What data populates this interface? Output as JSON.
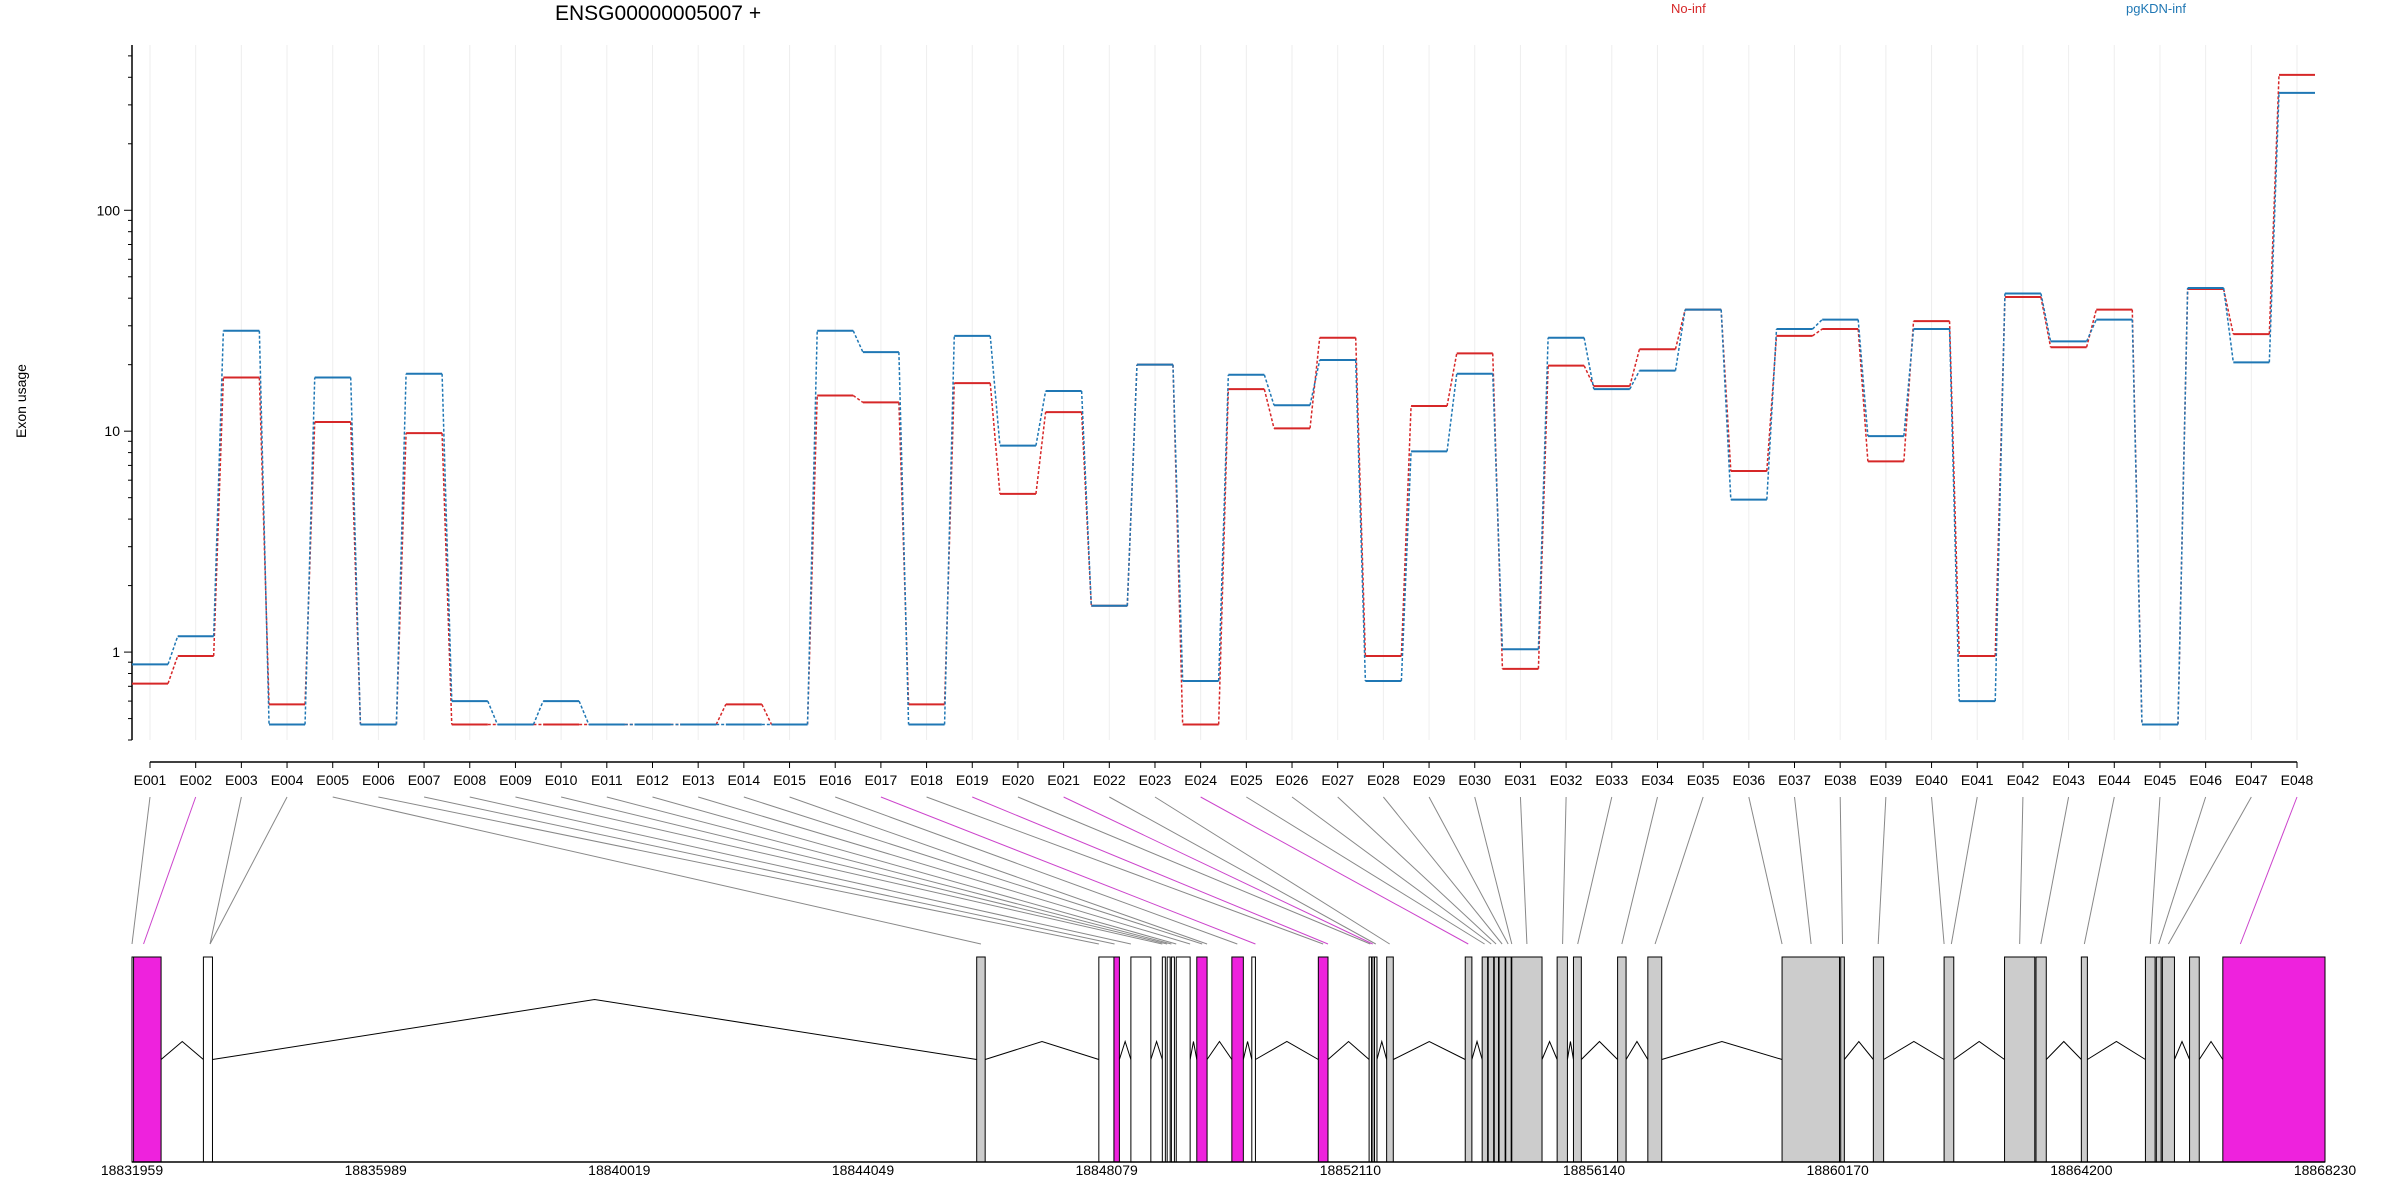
{
  "header": {
    "gene_title": "ENSG00000005007 +",
    "legend": [
      {
        "label": "No-inf",
        "color": "#d62728"
      },
      {
        "label": "pgKDN-inf",
        "color": "#1f77b4"
      }
    ]
  },
  "chart_data": {
    "type": "line",
    "title": "ENSG00000005007 +",
    "ylabel": "Exon usage",
    "yscale": "log",
    "ylim": [
      0.4,
      560
    ],
    "ytick_labels": [
      "1",
      "10",
      "100"
    ],
    "ytick_values": [
      1,
      10,
      100
    ],
    "grid": "vertical",
    "legend_placement": "top",
    "categories": [
      "E001",
      "E002",
      "E003",
      "E004",
      "E005",
      "E006",
      "E007",
      "E008",
      "E009",
      "E010",
      "E011",
      "E012",
      "E013",
      "E014",
      "E015",
      "E016",
      "E017",
      "E018",
      "E019",
      "E020",
      "E021",
      "E022",
      "E023",
      "E024",
      "E025",
      "E026",
      "E027",
      "E028",
      "E029",
      "E030",
      "E031",
      "E032",
      "E033",
      "E034",
      "E035",
      "E036",
      "E037",
      "E038",
      "E039",
      "E040",
      "E041",
      "E042",
      "E043",
      "E044",
      "E045",
      "E046",
      "E047",
      "E048"
    ],
    "series": [
      {
        "name": "No-inf",
        "color": "#d62728",
        "values": [
          0.72,
          0.96,
          17.5,
          0.58,
          11,
          0.47,
          9.8,
          0.47,
          0.47,
          0.47,
          0.47,
          0.47,
          0.47,
          0.58,
          0.47,
          14.5,
          13.5,
          0.58,
          16.5,
          5.2,
          12.2,
          1.62,
          20,
          0.47,
          15.5,
          10.3,
          26.5,
          0.96,
          13,
          22.5,
          0.84,
          19.8,
          16,
          23.5,
          35.5,
          6.6,
          27,
          29,
          7.3,
          31.5,
          0.96,
          40.5,
          24,
          35.5,
          0.47,
          44,
          27.5,
          410
        ]
      },
      {
        "name": "pgKDN-inf",
        "color": "#1f77b4",
        "values": [
          0.88,
          1.18,
          28.5,
          0.47,
          17.5,
          0.47,
          18.2,
          0.6,
          0.47,
          0.6,
          0.47,
          0.47,
          0.47,
          0.47,
          0.47,
          28.5,
          22.8,
          0.47,
          27,
          8.6,
          15.2,
          1.62,
          20,
          0.74,
          18,
          13.1,
          21,
          0.74,
          8.1,
          18.2,
          1.03,
          26.5,
          15.5,
          18.8,
          35.5,
          4.9,
          29,
          32,
          9.5,
          29,
          0.6,
          42,
          25.5,
          32,
          0.47,
          44.5,
          20.5,
          340
        ]
      }
    ],
    "gene_track": {
      "coordinate_labels": [
        "18831959",
        "18835989",
        "18840019",
        "18844049",
        "18848079",
        "18852110",
        "18856140",
        "18860170",
        "18864200",
        "18868230"
      ],
      "coordinate_values": [
        18831959,
        18835989,
        18840019,
        18844049,
        18848079,
        18852110,
        18856140,
        18860170,
        18864200,
        18868230
      ],
      "range": [
        18831959,
        18868230
      ],
      "highlighted_exons": [
        "E002",
        "E017",
        "E019",
        "E021",
        "E024",
        "E048"
      ],
      "highlight_color": "#ee22dd",
      "exon_color": "#cccccc",
      "feature_blocks": [
        {
          "start": 18831959,
          "end": 18831985,
          "fill": "white"
        },
        {
          "start": 18831985,
          "end": 18832440,
          "fill": "magenta"
        },
        {
          "start": 18833140,
          "end": 18833290,
          "fill": "white"
        },
        {
          "start": 18845930,
          "end": 18846070,
          "fill": "grey"
        },
        {
          "start": 18847950,
          "end": 18848200,
          "fill": "white"
        },
        {
          "start": 18848200,
          "end": 18848290,
          "fill": "magenta"
        },
        {
          "start": 18848480,
          "end": 18848810,
          "fill": "white"
        },
        {
          "start": 18849000,
          "end": 18849050,
          "fill": "white"
        },
        {
          "start": 18849080,
          "end": 18849130,
          "fill": "white"
        },
        {
          "start": 18849150,
          "end": 18849200,
          "fill": "white"
        },
        {
          "start": 18849230,
          "end": 18849460,
          "fill": "white"
        },
        {
          "start": 18849570,
          "end": 18849740,
          "fill": "magenta"
        },
        {
          "start": 18850150,
          "end": 18850340,
          "fill": "magenta"
        },
        {
          "start": 18850480,
          "end": 18850540,
          "fill": "white"
        },
        {
          "start": 18851580,
          "end": 18851740,
          "fill": "magenta"
        },
        {
          "start": 18852420,
          "end": 18852460,
          "fill": "white"
        },
        {
          "start": 18852470,
          "end": 18852500,
          "fill": "white"
        },
        {
          "start": 18852510,
          "end": 18852550,
          "fill": "white"
        },
        {
          "start": 18852710,
          "end": 18852820,
          "fill": "grey"
        },
        {
          "start": 18854010,
          "end": 18854120,
          "fill": "grey"
        },
        {
          "start": 18854290,
          "end": 18854380,
          "fill": "grey"
        },
        {
          "start": 18854390,
          "end": 18854480,
          "fill": "grey"
        },
        {
          "start": 18854490,
          "end": 18854560,
          "fill": "grey"
        },
        {
          "start": 18854570,
          "end": 18854670,
          "fill": "grey"
        },
        {
          "start": 18854680,
          "end": 18854770,
          "fill": "grey"
        },
        {
          "start": 18854780,
          "end": 18855280,
          "fill": "grey"
        },
        {
          "start": 18855530,
          "end": 18855700,
          "fill": "grey"
        },
        {
          "start": 18855800,
          "end": 18855930,
          "fill": "grey"
        },
        {
          "start": 18856530,
          "end": 18856670,
          "fill": "grey"
        },
        {
          "start": 18857030,
          "end": 18857260,
          "fill": "grey"
        },
        {
          "start": 18859250,
          "end": 18860200,
          "fill": "grey"
        },
        {
          "start": 18860220,
          "end": 18860280,
          "fill": "grey"
        },
        {
          "start": 18860760,
          "end": 18860930,
          "fill": "grey"
        },
        {
          "start": 18861930,
          "end": 18862090,
          "fill": "grey"
        },
        {
          "start": 18862930,
          "end": 18863430,
          "fill": "grey"
        },
        {
          "start": 18863450,
          "end": 18863620,
          "fill": "grey"
        },
        {
          "start": 18864200,
          "end": 18864300,
          "fill": "grey"
        },
        {
          "start": 18865260,
          "end": 18865420,
          "fill": "grey"
        },
        {
          "start": 18865440,
          "end": 18865520,
          "fill": "grey"
        },
        {
          "start": 18865540,
          "end": 18865740,
          "fill": "grey"
        },
        {
          "start": 18865990,
          "end": 18866150,
          "fill": "grey"
        },
        {
          "start": 18866540,
          "end": 18868230,
          "fill": "magenta"
        }
      ],
      "exon_anchor_coords": [
        18831959,
        18832150,
        18833250,
        18833250,
        18846000,
        18847950,
        18848210,
        18848480,
        18849000,
        18849080,
        18849150,
        18849230,
        18849460,
        18849660,
        18849740,
        18850240,
        18850540,
        18851660,
        18851740,
        18852440,
        18852480,
        18852530,
        18852760,
        18854060,
        18854330,
        18854440,
        18854520,
        18854620,
        18854720,
        18854780,
        18855030,
        18855620,
        18855870,
        18856600,
        18857150,
        18859250,
        18859730,
        18860250,
        18860840,
        18861930,
        18862050,
        18863180,
        18863530,
        18864250,
        18865340,
        18865480,
        18865640,
        18866830
      ]
    }
  }
}
